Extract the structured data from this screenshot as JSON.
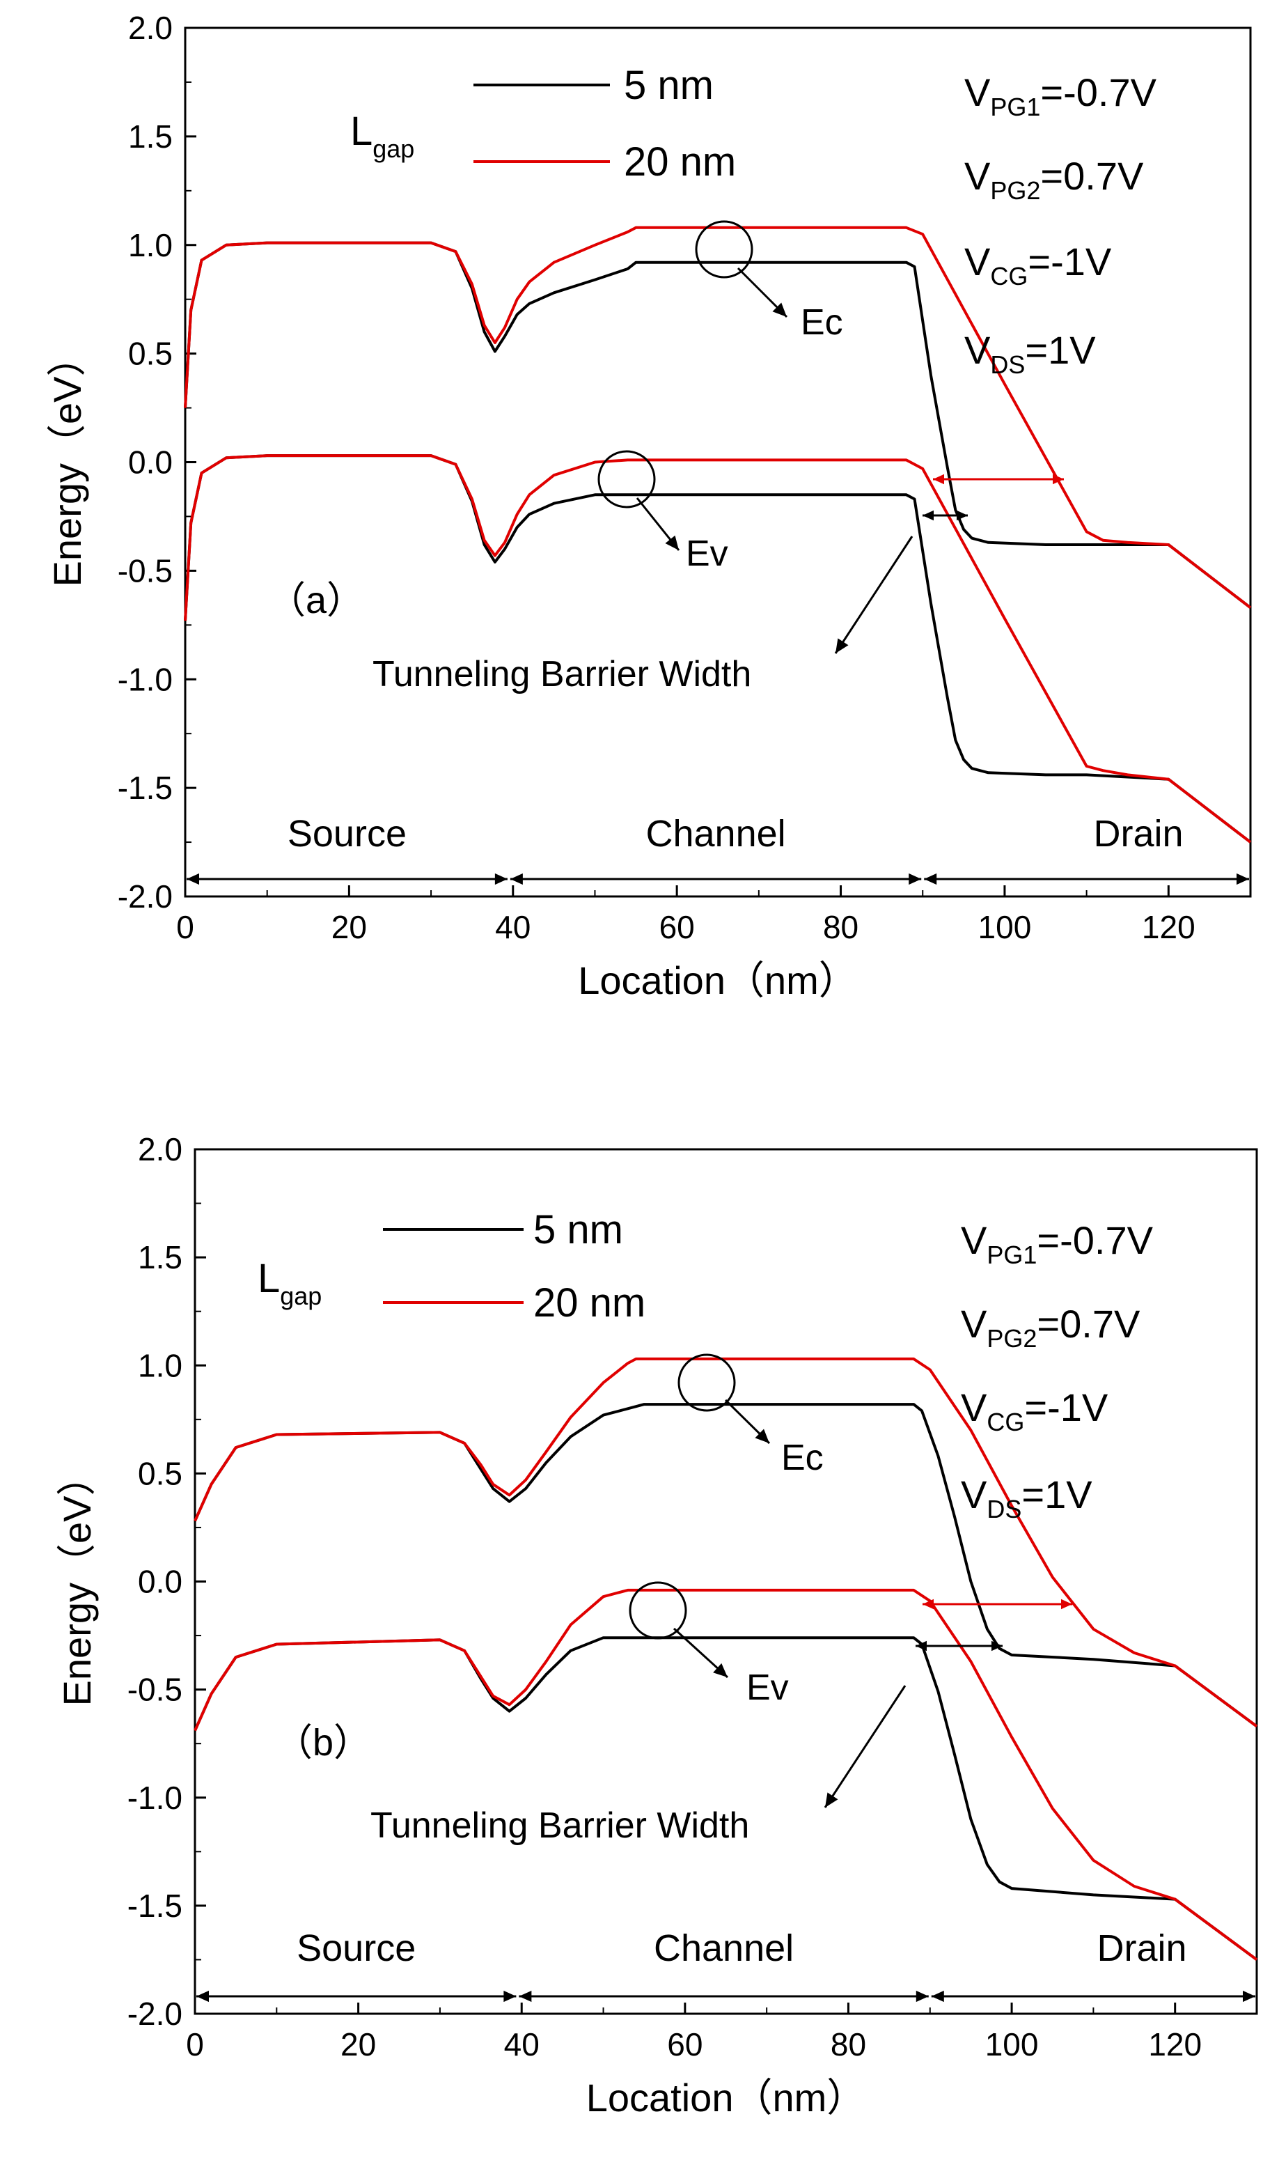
{
  "chart_data": [
    {
      "type": "line",
      "panel_label": "（a）",
      "title": "",
      "xlabel": "Location（nm）",
      "ylabel": "Energy（eV）",
      "xlim": [
        0,
        130
      ],
      "ylim": [
        -2.0,
        2.0
      ],
      "x_ticks": [
        "0",
        "20",
        "40",
        "60",
        "80",
        "100",
        "120"
      ],
      "y_ticks": [
        "2.0",
        "1.5",
        "1.0",
        "0.5",
        "0.0",
        "-0.5",
        "-1.0",
        "-1.5",
        "-2.0"
      ],
      "legend": {
        "title": "Lgap",
        "title_main": "L",
        "title_sub": "gap",
        "entries": [
          "5 nm",
          "20 nm"
        ],
        "colors": [
          "#000000",
          "#e00000"
        ],
        "position": "top-left"
      },
      "bias": [
        {
          "main": "V",
          "sub": "PG1",
          "value": "=-0.7V"
        },
        {
          "main": "V",
          "sub": "PG2",
          "value": "=0.7V"
        },
        {
          "main": "V",
          "sub": "CG",
          "value": "=-1V"
        },
        {
          "main": "V",
          "sub": "DS",
          "value": "=1V"
        }
      ],
      "regions": [
        {
          "label": "Source",
          "from": 0,
          "to": 39.5
        },
        {
          "label": "Channel",
          "from": 39.5,
          "to": 90
        },
        {
          "label": "Drain",
          "from": 90,
          "to": 130
        }
      ],
      "annotations": {
        "ec": "Ec",
        "ev": "Ev",
        "barrier": "Tunneling Barrier Width"
      },
      "series": [
        {
          "name": "5 nm Ec",
          "color": "#000000",
          "x": [
            0,
            0.7,
            2,
            5,
            10,
            30,
            33,
            35,
            36.5,
            37.8,
            39,
            40.5,
            42,
            45,
            50,
            54,
            55,
            88,
            89,
            91,
            93,
            94,
            95,
            96,
            98,
            105,
            110,
            120,
            130
          ],
          "y": [
            0.25,
            0.7,
            0.93,
            1.0,
            1.01,
            1.01,
            0.97,
            0.8,
            0.6,
            0.51,
            0.58,
            0.68,
            0.73,
            0.78,
            0.84,
            0.89,
            0.92,
            0.92,
            0.9,
            0.4,
            -0.02,
            -0.22,
            -0.31,
            -0.35,
            -0.37,
            -0.38,
            -0.38,
            -0.38,
            -0.67
          ]
        },
        {
          "name": "5 nm Ev",
          "color": "#000000",
          "x": [
            0,
            0.7,
            2,
            5,
            10,
            30,
            33,
            35,
            36.5,
            37.8,
            39,
            40.5,
            42,
            45,
            50,
            54,
            55,
            88,
            89,
            91,
            93,
            94,
            95,
            96,
            98,
            105,
            110,
            120,
            130
          ],
          "y": [
            -0.73,
            -0.28,
            -0.05,
            0.02,
            0.03,
            0.03,
            -0.01,
            -0.18,
            -0.38,
            -0.46,
            -0.4,
            -0.3,
            -0.24,
            -0.19,
            -0.15,
            -0.15,
            -0.15,
            -0.15,
            -0.17,
            -0.65,
            -1.08,
            -1.28,
            -1.37,
            -1.41,
            -1.43,
            -1.44,
            -1.44,
            -1.46,
            -1.75
          ]
        },
        {
          "name": "20 nm Ec",
          "color": "#e00000",
          "x": [
            0,
            0.7,
            2,
            5,
            10,
            30,
            33,
            35,
            36.5,
            37.8,
            39,
            40.5,
            42,
            45,
            50,
            54,
            55,
            88,
            90,
            100,
            110,
            112,
            115,
            120,
            130
          ],
          "y": [
            0.25,
            0.7,
            0.93,
            1.0,
            1.01,
            1.01,
            0.97,
            0.82,
            0.63,
            0.55,
            0.62,
            0.75,
            0.83,
            0.92,
            1.0,
            1.06,
            1.08,
            1.08,
            1.05,
            0.36,
            -0.32,
            -0.36,
            -0.37,
            -0.38,
            -0.67
          ]
        },
        {
          "name": "20 nm Ev",
          "color": "#e00000",
          "x": [
            0,
            0.7,
            2,
            5,
            10,
            30,
            33,
            35,
            36.5,
            37.8,
            39,
            40.5,
            42,
            45,
            50,
            54,
            55,
            88,
            90,
            100,
            110,
            112,
            115,
            120,
            130
          ],
          "y": [
            -0.73,
            -0.28,
            -0.05,
            0.02,
            0.03,
            0.03,
            -0.01,
            -0.17,
            -0.36,
            -0.43,
            -0.37,
            -0.24,
            -0.15,
            -0.06,
            0.0,
            0.01,
            0.01,
            0.01,
            -0.03,
            -0.72,
            -1.4,
            -1.42,
            -1.44,
            -1.46,
            -1.75
          ]
        }
      ]
    },
    {
      "type": "line",
      "panel_label": "（b）",
      "title": "",
      "xlabel": "Location（nm）",
      "ylabel": "Energy（eV）",
      "xlim": [
        0,
        130
      ],
      "ylim": [
        -2.0,
        2.0
      ],
      "x_ticks": [
        "0",
        "20",
        "40",
        "60",
        "80",
        "100",
        "120"
      ],
      "y_ticks": [
        "2.0",
        "1.5",
        "1.0",
        "0.5",
        "0.0",
        "-0.5",
        "-1.0",
        "-1.5",
        "-2.0"
      ],
      "legend": {
        "title": "Lgap",
        "title_main": "L",
        "title_sub": "gap",
        "entries": [
          "5 nm",
          "20 nm"
        ],
        "colors": [
          "#000000",
          "#e00000"
        ],
        "position": "top-left"
      },
      "bias": [
        {
          "main": "V",
          "sub": "PG1",
          "value": "=-0.7V"
        },
        {
          "main": "V",
          "sub": "PG2",
          "value": "=0.7V"
        },
        {
          "main": "V",
          "sub": "CG",
          "value": "=-1V"
        },
        {
          "main": "V",
          "sub": "DS",
          "value": "=1V"
        }
      ],
      "regions": [
        {
          "label": "Source",
          "from": 0,
          "to": 39.5
        },
        {
          "label": "Channel",
          "from": 39.5,
          "to": 90
        },
        {
          "label": "Drain",
          "from": 90,
          "to": 130
        }
      ],
      "annotations": {
        "ec": "Ec",
        "ev": "Ev",
        "barrier": "Tunneling Barrier Width"
      },
      "series": [
        {
          "name": "5 nm Ec",
          "color": "#000000",
          "x": [
            0,
            2,
            5,
            10,
            30,
            33,
            35,
            36.5,
            38.5,
            40.5,
            43,
            46,
            50,
            54,
            55,
            88,
            89,
            91,
            93,
            95,
            97,
            98.5,
            100,
            110,
            120,
            130
          ],
          "y": [
            0.28,
            0.45,
            0.62,
            0.68,
            0.69,
            0.64,
            0.52,
            0.43,
            0.37,
            0.43,
            0.55,
            0.67,
            0.77,
            0.81,
            0.82,
            0.82,
            0.79,
            0.58,
            0.3,
            0.0,
            -0.22,
            -0.31,
            -0.34,
            -0.36,
            -0.39,
            -0.67
          ]
        },
        {
          "name": "5 nm Ev",
          "color": "#000000",
          "x": [
            0,
            2,
            5,
            10,
            30,
            33,
            35,
            36.5,
            38.5,
            40.5,
            43,
            46,
            50,
            54,
            55,
            88,
            89,
            91,
            93,
            95,
            97,
            98.5,
            100,
            110,
            120,
            130
          ],
          "y": [
            -0.69,
            -0.52,
            -0.35,
            -0.29,
            -0.27,
            -0.32,
            -0.45,
            -0.54,
            -0.6,
            -0.54,
            -0.43,
            -0.32,
            -0.26,
            -0.26,
            -0.26,
            -0.26,
            -0.29,
            -0.51,
            -0.8,
            -1.1,
            -1.31,
            -1.39,
            -1.42,
            -1.45,
            -1.47,
            -1.75
          ]
        },
        {
          "name": "20 nm Ec",
          "color": "#e00000",
          "x": [
            0,
            2,
            5,
            10,
            30,
            33,
            35,
            36.5,
            38.5,
            40.5,
            43,
            46,
            50,
            53,
            54,
            88,
            90,
            95,
            100,
            105,
            110,
            115,
            120,
            130
          ],
          "y": [
            0.28,
            0.45,
            0.62,
            0.68,
            0.69,
            0.64,
            0.54,
            0.45,
            0.4,
            0.47,
            0.6,
            0.76,
            0.92,
            1.01,
            1.03,
            1.03,
            0.98,
            0.7,
            0.35,
            0.02,
            -0.22,
            -0.33,
            -0.39,
            -0.67
          ]
        },
        {
          "name": "20 nm Ev",
          "color": "#e00000",
          "x": [
            0,
            2,
            5,
            10,
            30,
            33,
            35,
            36.5,
            38.5,
            40.5,
            43,
            46,
            50,
            53,
            54,
            88,
            90,
            95,
            100,
            105,
            110,
            115,
            120,
            130
          ],
          "y": [
            -0.69,
            -0.52,
            -0.35,
            -0.29,
            -0.27,
            -0.32,
            -0.44,
            -0.53,
            -0.57,
            -0.5,
            -0.37,
            -0.2,
            -0.07,
            -0.04,
            -0.04,
            -0.04,
            -0.09,
            -0.37,
            -0.72,
            -1.05,
            -1.29,
            -1.41,
            -1.47,
            -1.75
          ]
        }
      ]
    }
  ]
}
